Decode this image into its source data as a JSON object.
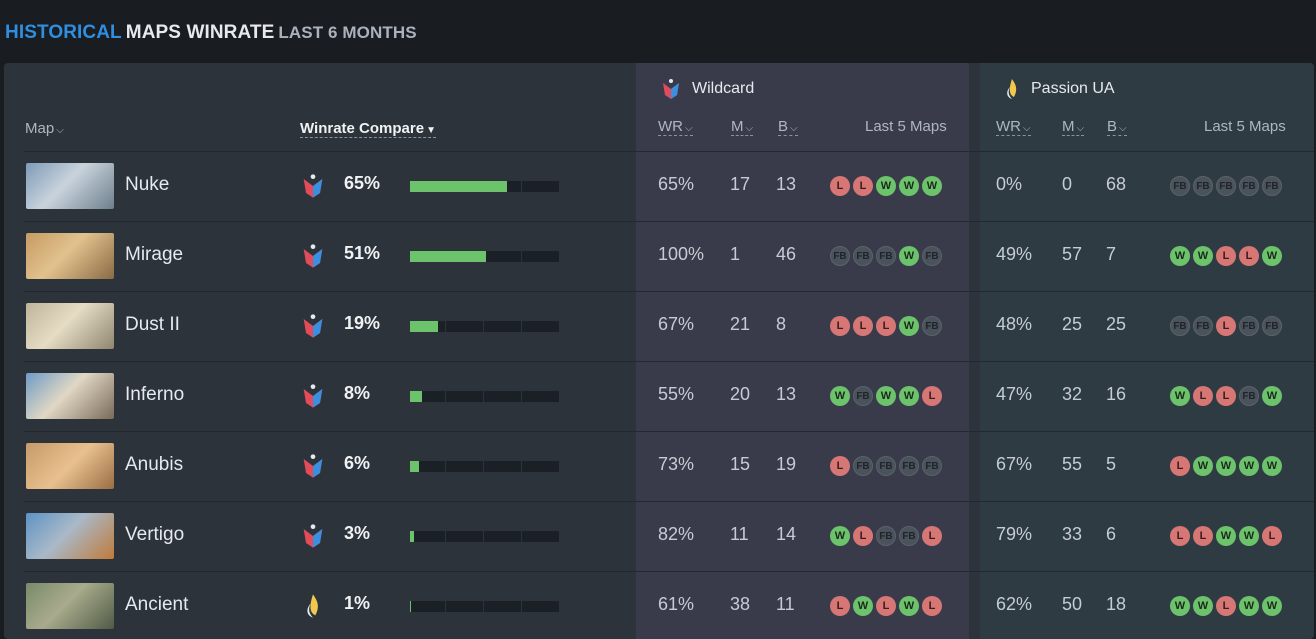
{
  "title": {
    "highlight": "HISTORICAL",
    "main": "MAPS WINRATE",
    "period": "LAST 6 MONTHS"
  },
  "headers": {
    "map": "Map",
    "winrate_compare": "Winrate Compare",
    "wr": "WR",
    "m": "M",
    "b": "B",
    "last5": "Last 5 Maps"
  },
  "teams": [
    {
      "name": "Wildcard",
      "logo": "wildcard-logo"
    },
    {
      "name": "Passion UA",
      "logo": "passion-ua-logo"
    }
  ],
  "colors": {
    "win": "#6cc36b",
    "loss": "#d77775",
    "accent": "#2f8ee0"
  },
  "rows": [
    {
      "map": "Nuke",
      "cmp_team": "wildcard",
      "cmp_pct": "65%",
      "cmp_value": 65,
      "t1": {
        "wr": "65%",
        "m": "17",
        "b": "13",
        "last5": [
          "L",
          "L",
          "W",
          "W",
          "W"
        ]
      },
      "t2": {
        "wr": "0%",
        "m": "0",
        "b": "68",
        "last5": [
          "FB",
          "FB",
          "FB",
          "FB",
          "FB"
        ]
      }
    },
    {
      "map": "Mirage",
      "cmp_team": "wildcard",
      "cmp_pct": "51%",
      "cmp_value": 51,
      "t1": {
        "wr": "100%",
        "m": "1",
        "b": "46",
        "last5": [
          "FB",
          "FB",
          "FB",
          "W",
          "FB"
        ]
      },
      "t2": {
        "wr": "49%",
        "m": "57",
        "b": "7",
        "last5": [
          "W",
          "W",
          "L",
          "L",
          "W"
        ]
      }
    },
    {
      "map": "Dust II",
      "cmp_team": "wildcard",
      "cmp_pct": "19%",
      "cmp_value": 19,
      "t1": {
        "wr": "67%",
        "m": "21",
        "b": "8",
        "last5": [
          "L",
          "L",
          "L",
          "W",
          "FB"
        ]
      },
      "t2": {
        "wr": "48%",
        "m": "25",
        "b": "25",
        "last5": [
          "FB",
          "FB",
          "L",
          "FB",
          "FB"
        ]
      }
    },
    {
      "map": "Inferno",
      "cmp_team": "wildcard",
      "cmp_pct": "8%",
      "cmp_value": 8,
      "t1": {
        "wr": "55%",
        "m": "20",
        "b": "13",
        "last5": [
          "W",
          "FB",
          "W",
          "W",
          "L"
        ]
      },
      "t2": {
        "wr": "47%",
        "m": "32",
        "b": "16",
        "last5": [
          "W",
          "L",
          "L",
          "FB",
          "W"
        ]
      }
    },
    {
      "map": "Anubis",
      "cmp_team": "wildcard",
      "cmp_pct": "6%",
      "cmp_value": 6,
      "t1": {
        "wr": "73%",
        "m": "15",
        "b": "19",
        "last5": [
          "L",
          "FB",
          "FB",
          "FB",
          "FB"
        ]
      },
      "t2": {
        "wr": "67%",
        "m": "55",
        "b": "5",
        "last5": [
          "L",
          "W",
          "W",
          "W",
          "W"
        ]
      }
    },
    {
      "map": "Vertigo",
      "cmp_team": "wildcard",
      "cmp_pct": "3%",
      "cmp_value": 3,
      "t1": {
        "wr": "82%",
        "m": "11",
        "b": "14",
        "last5": [
          "W",
          "L",
          "FB",
          "FB",
          "L"
        ]
      },
      "t2": {
        "wr": "79%",
        "m": "33",
        "b": "6",
        "last5": [
          "L",
          "L",
          "W",
          "W",
          "L"
        ]
      }
    },
    {
      "map": "Ancient",
      "cmp_team": "passion",
      "cmp_pct": "1%",
      "cmp_value": 1,
      "t1": {
        "wr": "61%",
        "m": "38",
        "b": "11",
        "last5": [
          "L",
          "W",
          "L",
          "W",
          "L"
        ]
      },
      "t2": {
        "wr": "62%",
        "m": "50",
        "b": "18",
        "last5": [
          "W",
          "W",
          "L",
          "W",
          "W"
        ]
      }
    }
  ]
}
